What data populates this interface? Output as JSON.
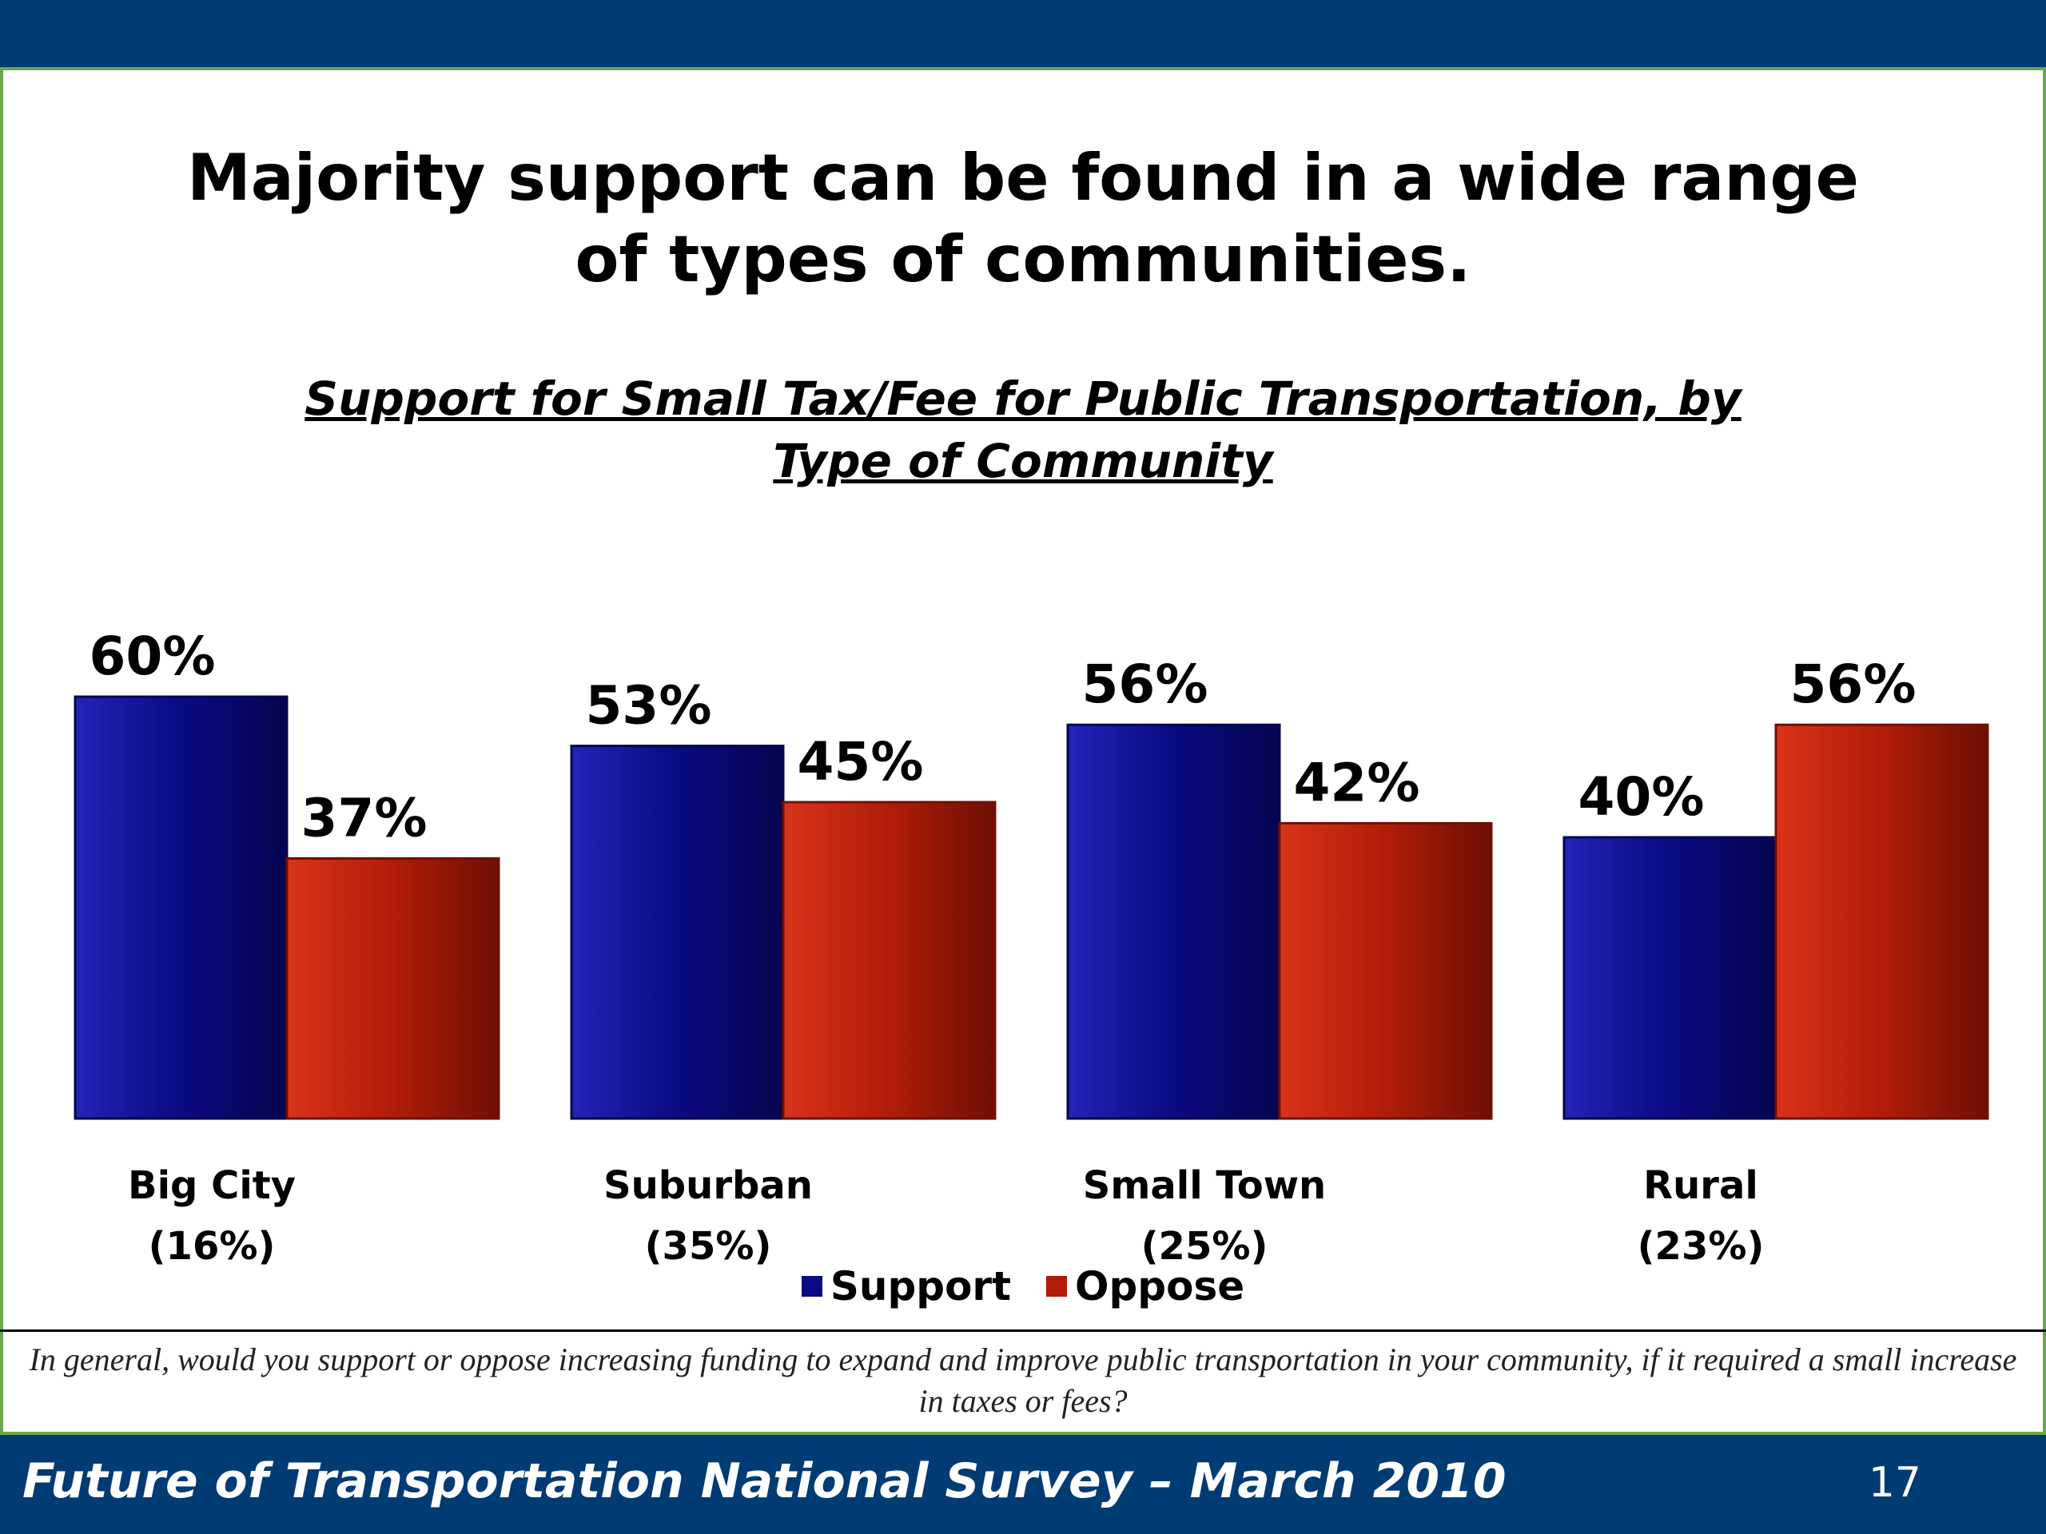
{
  "headline": {
    "line1": "Majority support can be found in a wide range",
    "line2": "of types of communities."
  },
  "chart_data": {
    "type": "bar",
    "title_lines": [
      "Support for Small Tax/Fee for Public Transportation, by",
      "Type of Community"
    ],
    "categories": [
      {
        "name": "Big City",
        "share": "(16%)"
      },
      {
        "name": "Suburban",
        "share": "(35%)"
      },
      {
        "name": "Small Town",
        "share": "(25%)"
      },
      {
        "name": "Rural",
        "share": "(23%)"
      }
    ],
    "series": [
      {
        "name": "Support",
        "values": [
          60,
          53,
          56,
          40
        ],
        "labels": [
          "60%",
          "53%",
          "56%",
          "40%"
        ],
        "color": "#0a0a82"
      },
      {
        "name": "Oppose",
        "values": [
          37,
          45,
          42,
          56
        ],
        "labels": [
          "37%",
          "45%",
          "42%",
          "56%"
        ],
        "color": "#b01c08"
      }
    ],
    "ylim": [
      0,
      60
    ],
    "grid": false,
    "legend": "bottom-center"
  },
  "question": "In general, would you support or oppose increasing funding to expand and improve public transportation in your community, if it required a small increase in taxes or fees?",
  "footer": {
    "title": "Future of Transportation National Survey – March 2010",
    "page_number": "17"
  },
  "colors": {
    "brand_navy": "#003b73",
    "frame_green": "#6aa84f"
  }
}
